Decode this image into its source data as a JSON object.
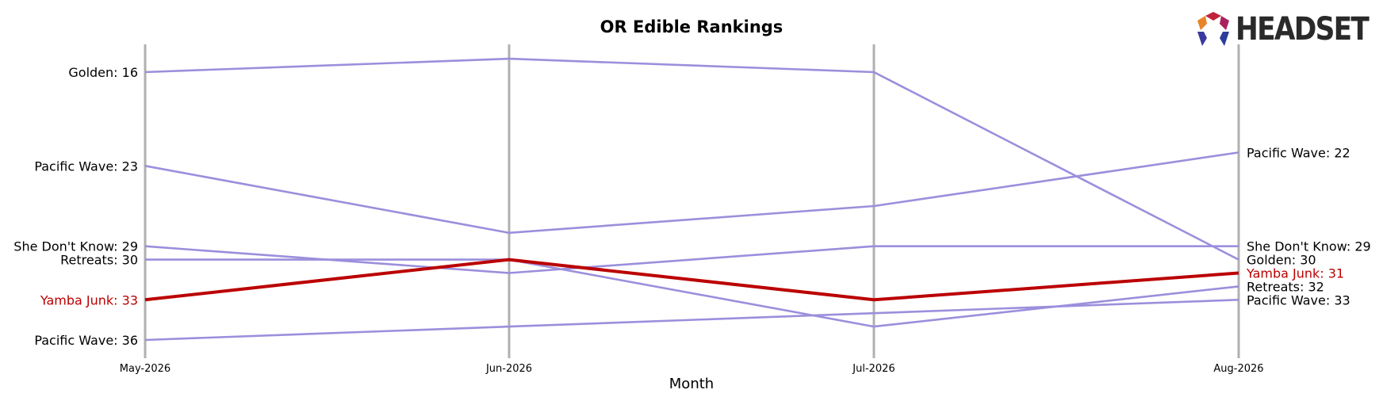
{
  "logo": {
    "text": "HEADSET"
  },
  "chart_data": {
    "type": "line",
    "title": "OR Edible Rankings",
    "xlabel": "Month",
    "ylabel": "",
    "x": [
      "May-2026",
      "Jun-2026",
      "Jul-2026",
      "Aug-2026"
    ],
    "ylim": [
      36,
      15
    ],
    "y_inverted": true,
    "grid": "vertical lines at each month",
    "highlight_color": "#bb0000",
    "series_color": "#9b8fdc",
    "series": [
      {
        "name": "Golden",
        "values": [
          16,
          15,
          16,
          30
        ],
        "highlight": false
      },
      {
        "name": "Pacific Wave",
        "values": [
          23,
          28,
          26,
          22
        ],
        "highlight": false
      },
      {
        "name": "She Don't Know",
        "values": [
          29,
          31,
          29,
          29
        ],
        "highlight": false
      },
      {
        "name": "Retreats",
        "values": [
          30,
          30,
          35,
          32
        ],
        "highlight": false
      },
      {
        "name": "Pacific Wave",
        "values": [
          36,
          35,
          34,
          33
        ],
        "highlight": false
      },
      {
        "name": "Yamba Junk",
        "values": [
          33,
          30,
          33,
          31
        ],
        "highlight": true
      }
    ],
    "left_labels": [
      {
        "text": "Golden: 16",
        "value": 16,
        "highlight": false
      },
      {
        "text": "Pacific Wave: 23",
        "value": 23,
        "highlight": false
      },
      {
        "text": "She Don't Know: 29",
        "value": 29,
        "highlight": false
      },
      {
        "text": "Retreats: 30",
        "value": 30,
        "highlight": false
      },
      {
        "text": "Yamba Junk: 33",
        "value": 33,
        "highlight": true
      },
      {
        "text": "Pacific Wave: 36",
        "value": 36,
        "highlight": false
      }
    ],
    "right_labels": [
      {
        "text": "Pacific Wave: 22",
        "value": 22,
        "highlight": false
      },
      {
        "text": "She Don't Know: 29",
        "value": 29,
        "highlight": false
      },
      {
        "text": "Golden: 30",
        "value": 30,
        "highlight": false
      },
      {
        "text": "Yamba Junk: 31",
        "value": 31,
        "highlight": true
      },
      {
        "text": "Retreats: 32",
        "value": 32,
        "highlight": false
      },
      {
        "text": "Pacific Wave: 33",
        "value": 33,
        "highlight": false
      }
    ]
  }
}
